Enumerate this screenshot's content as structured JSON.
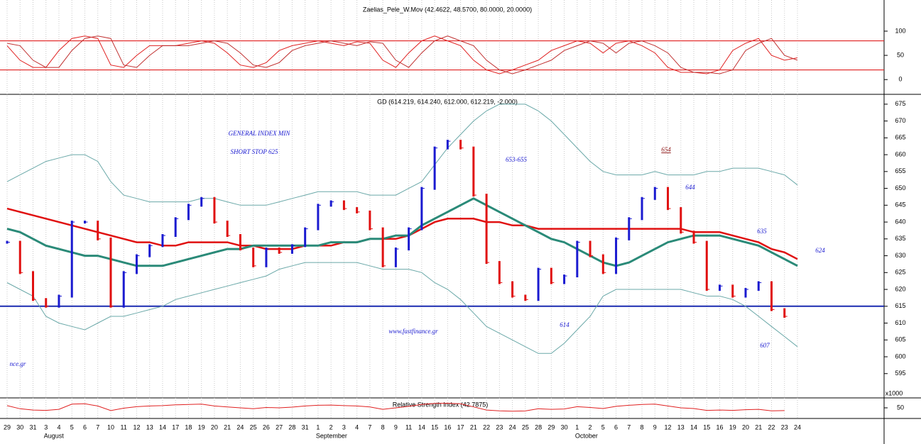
{
  "chart_data": [
    {
      "type": "line",
      "title": "Zaelias_Pele_W.Mov (42.4622, 48.5700, 80.0000, 20.0000)",
      "ylim": [
        -29,
        157
      ],
      "yticks": [
        0,
        50,
        100
      ],
      "hlines": [
        80,
        20
      ],
      "hline_color": "#e02020",
      "series": [
        {
          "color": "#e02020",
          "values": [
            70,
            40,
            25,
            25,
            60,
            85,
            90,
            85,
            30,
            25,
            50,
            70,
            70,
            70,
            75,
            80,
            75,
            55,
            30,
            25,
            35,
            60,
            70,
            75,
            80,
            75,
            70,
            78,
            75,
            40,
            25,
            55,
            80,
            90,
            80,
            70,
            40,
            20,
            12,
            20,
            30,
            40,
            60,
            70,
            80,
            75,
            55,
            75,
            80,
            70,
            55,
            25,
            15,
            15,
            12,
            20,
            60,
            75,
            85,
            50,
            40,
            45
          ]
        },
        {
          "color": "#c03030",
          "values": [
            75,
            70,
            40,
            25,
            25,
            60,
            85,
            90,
            85,
            30,
            25,
            50,
            70,
            70,
            70,
            75,
            80,
            75,
            55,
            30,
            25,
            35,
            60,
            70,
            75,
            80,
            75,
            70,
            78,
            75,
            40,
            25,
            55,
            80,
            90,
            80,
            70,
            40,
            20,
            12,
            20,
            30,
            40,
            60,
            70,
            80,
            75,
            55,
            75,
            80,
            70,
            55,
            25,
            15,
            15,
            12,
            20,
            60,
            75,
            85,
            50,
            40
          ]
        }
      ]
    },
    {
      "type": "bar-line",
      "title": "GD (614.219, 614.240, 612.000, 612.219, -2.000)",
      "ylim": [
        588,
        677.5
      ],
      "yticks": [
        595,
        600,
        605,
        610,
        615,
        620,
        625,
        630,
        635,
        640,
        645,
        650,
        655,
        660,
        665,
        670,
        675
      ],
      "hlines": [
        615
      ],
      "hline_color": "#1a2ab0",
      "volume_unit": "x1000",
      "categories": [
        "29",
        "30",
        "31",
        "3",
        "4",
        "5",
        "6",
        "7",
        "10",
        "11",
        "12",
        "13",
        "14",
        "17",
        "18",
        "19",
        "20",
        "21",
        "24",
        "25",
        "26",
        "27",
        "28",
        "31",
        "1",
        "2",
        "3",
        "4",
        "7",
        "8",
        "9",
        "11",
        "14",
        "15",
        "16",
        "17",
        "21",
        "22",
        "23",
        "24",
        "25",
        "28",
        "29",
        "30",
        "1",
        "2",
        "5",
        "6",
        "7",
        "8",
        "9",
        "12",
        "13",
        "14",
        "15",
        "16",
        "19",
        "20",
        "21",
        "22",
        "23",
        "24"
      ],
      "month_labels": [
        null,
        null,
        null,
        "August",
        null,
        null,
        null,
        null,
        null,
        null,
        null,
        null,
        null,
        null,
        null,
        null,
        null,
        null,
        null,
        null,
        null,
        null,
        null,
        null,
        "September",
        null,
        null,
        null,
        null,
        null,
        null,
        null,
        null,
        null,
        null,
        null,
        null,
        null,
        null,
        null,
        null,
        null,
        null,
        null,
        "October",
        null,
        null,
        null,
        null,
        null,
        null,
        null,
        null,
        null,
        null,
        null,
        null,
        null,
        null,
        null,
        null,
        null
      ],
      "up_color": "#1a1ad0",
      "down_color": "#e01010",
      "values": [
        634,
        625,
        617,
        615,
        618,
        640,
        640,
        635,
        615,
        625,
        630,
        633,
        636,
        641,
        645,
        647,
        640,
        636,
        632,
        627,
        632,
        631,
        633,
        638,
        645,
        646,
        644,
        643,
        638,
        627,
        632,
        638,
        650,
        662,
        664,
        662,
        648,
        628,
        622,
        618,
        617,
        626,
        622,
        624,
        634,
        630,
        625,
        635,
        641,
        647,
        650,
        644,
        637,
        634,
        620,
        621,
        618,
        620,
        622,
        614,
        612,
        null
      ],
      "series": [
        {
          "color": "#e01010",
          "width": 2.5,
          "values": [
            644,
            643,
            642,
            641,
            640,
            639,
            638,
            637,
            636,
            635,
            634,
            634,
            633,
            633,
            634,
            634,
            634,
            634,
            633,
            633,
            632,
            632,
            632,
            633,
            633,
            633,
            634,
            634,
            635,
            635,
            635,
            636,
            638,
            640,
            641,
            641,
            641,
            640,
            640,
            639,
            639,
            638,
            638,
            638,
            638,
            638,
            638,
            638,
            638,
            638,
            638,
            638,
            638,
            637,
            637,
            637,
            636,
            635,
            634,
            632,
            631,
            629
          ]
        },
        {
          "color": "#2a8a78",
          "width": 3,
          "values": [
            638,
            637,
            635,
            633,
            632,
            631,
            630,
            630,
            629,
            628,
            627,
            627,
            627,
            628,
            629,
            630,
            631,
            632,
            632,
            633,
            633,
            633,
            633,
            633,
            633,
            634,
            634,
            634,
            635,
            635,
            636,
            636,
            639,
            641,
            643,
            645,
            647,
            645,
            643,
            641,
            639,
            637,
            635,
            634,
            632,
            630,
            628,
            627,
            628,
            630,
            632,
            634,
            635,
            636,
            636,
            636,
            635,
            634,
            633,
            631,
            629,
            627
          ]
        },
        {
          "color": "#6aa8a8",
          "width": 1,
          "values": [
            652,
            654,
            656,
            658,
            659,
            660,
            660,
            658,
            652,
            648,
            647,
            646,
            646,
            646,
            646,
            647,
            647,
            646,
            645,
            645,
            645,
            646,
            647,
            648,
            649,
            649,
            649,
            649,
            648,
            648,
            648,
            650,
            652,
            657,
            662,
            666,
            670,
            673,
            675,
            675,
            675,
            673,
            670,
            666,
            662,
            658,
            655,
            654,
            654,
            654,
            655,
            654,
            654,
            654,
            655,
            655,
            656,
            656,
            656,
            655,
            654,
            651
          ]
        },
        {
          "color": "#6aa8a8",
          "width": 1,
          "values": [
            622,
            620,
            618,
            612,
            610,
            609,
            608,
            610,
            612,
            612,
            613,
            614,
            615,
            617,
            618,
            619,
            620,
            621,
            622,
            623,
            624,
            626,
            627,
            628,
            628,
            628,
            628,
            628,
            627,
            626,
            626,
            626,
            625,
            622,
            620,
            617,
            613,
            609,
            607,
            605,
            603,
            601,
            601,
            604,
            608,
            612,
            618,
            620,
            620,
            620,
            620,
            620,
            620,
            619,
            618,
            618,
            617,
            615,
            612,
            609,
            606,
            603
          ]
        }
      ],
      "annotations": [
        "GENERAL INDEX MIN",
        "SHORT STOP 625",
        "653-655",
        "654",
        "644",
        "635",
        "624",
        "614",
        "607",
        "www.fastfinance.gr",
        "nce.gr"
      ]
    },
    {
      "type": "line",
      "title": "Relative Strength Index (42.7875)",
      "ylim": [
        0,
        100
      ],
      "yticks": [
        50
      ],
      "series": [
        {
          "color": "#e02020",
          "values": [
            62,
            45,
            38,
            36,
            42,
            70,
            72,
            60,
            35,
            48,
            56,
            60,
            62,
            66,
            68,
            70,
            60,
            55,
            50,
            45,
            52,
            50,
            54,
            60,
            64,
            65,
            62,
            60,
            55,
            42,
            50,
            58,
            68,
            74,
            75,
            72,
            55,
            38,
            34,
            32,
            33,
            45,
            42,
            44,
            56,
            52,
            46,
            58,
            64,
            68,
            70,
            60,
            50,
            46,
            36,
            38,
            36,
            40,
            42,
            34,
            35,
            null
          ]
        }
      ]
    }
  ]
}
